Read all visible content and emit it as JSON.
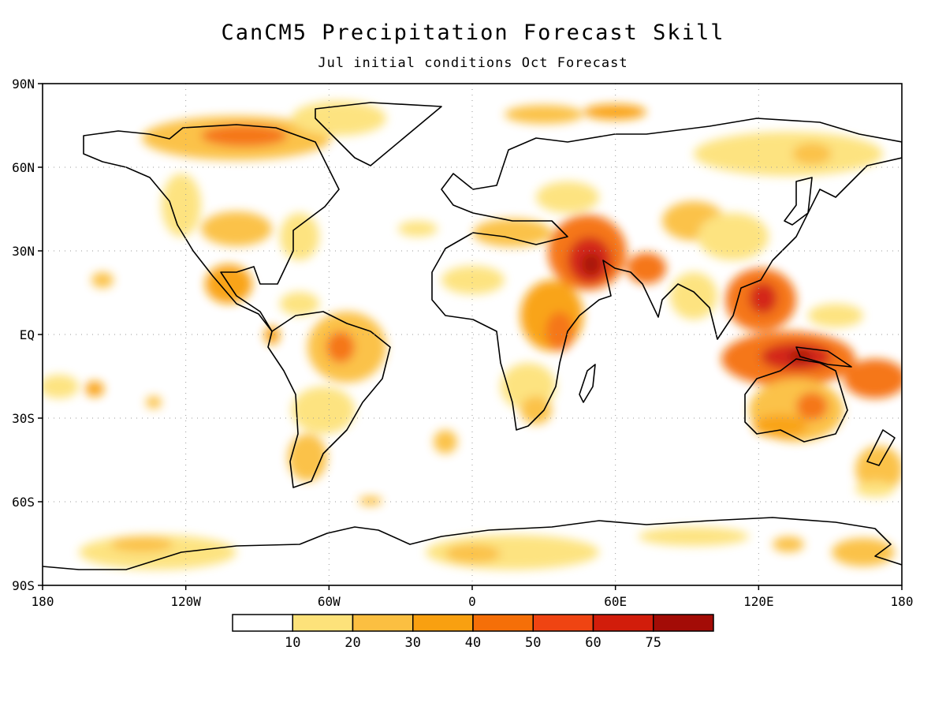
{
  "title": "CanCM5 Precipitation Forecast Skill",
  "subtitle": "Jul initial conditions   Oct Forecast",
  "lat_labels": [
    "90N",
    "60N",
    "30N",
    "EQ",
    "30S",
    "60S",
    "90S"
  ],
  "lat_values": [
    90,
    60,
    30,
    0,
    -30,
    -60,
    -90
  ],
  "lon_labels": [
    "180",
    "120W",
    "60W",
    "0",
    "60E",
    "120E",
    "180"
  ],
  "lon_values": [
    -180,
    -120,
    -60,
    0,
    60,
    120,
    180
  ],
  "colorbar": {
    "tick_labels": [
      "10",
      "20",
      "30",
      "40",
      "50",
      "60",
      "75"
    ],
    "colors": [
      "#ffffff",
      "#fde27a",
      "#fbbf41",
      "#f9a010",
      "#f56f08",
      "#ef4412",
      "#d21d0b",
      "#a30c06"
    ]
  },
  "skill_regions": [
    {
      "lon": 45,
      "lat": 25,
      "level": 6
    },
    {
      "lon": 140,
      "lat": -8,
      "level": 6
    },
    {
      "lon": 125,
      "lat": 10,
      "level": 5
    },
    {
      "lon": 38,
      "lat": 5,
      "level": 4
    },
    {
      "lon": -50,
      "lat": -5,
      "level": 3
    },
    {
      "lon": -100,
      "lat": 70,
      "level": 4
    },
    {
      "lon": 0,
      "lat": -78,
      "level": 2
    },
    {
      "lon": -140,
      "lat": -78,
      "level": 2
    },
    {
      "lon": 130,
      "lat": -25,
      "level": 3
    }
  ]
}
